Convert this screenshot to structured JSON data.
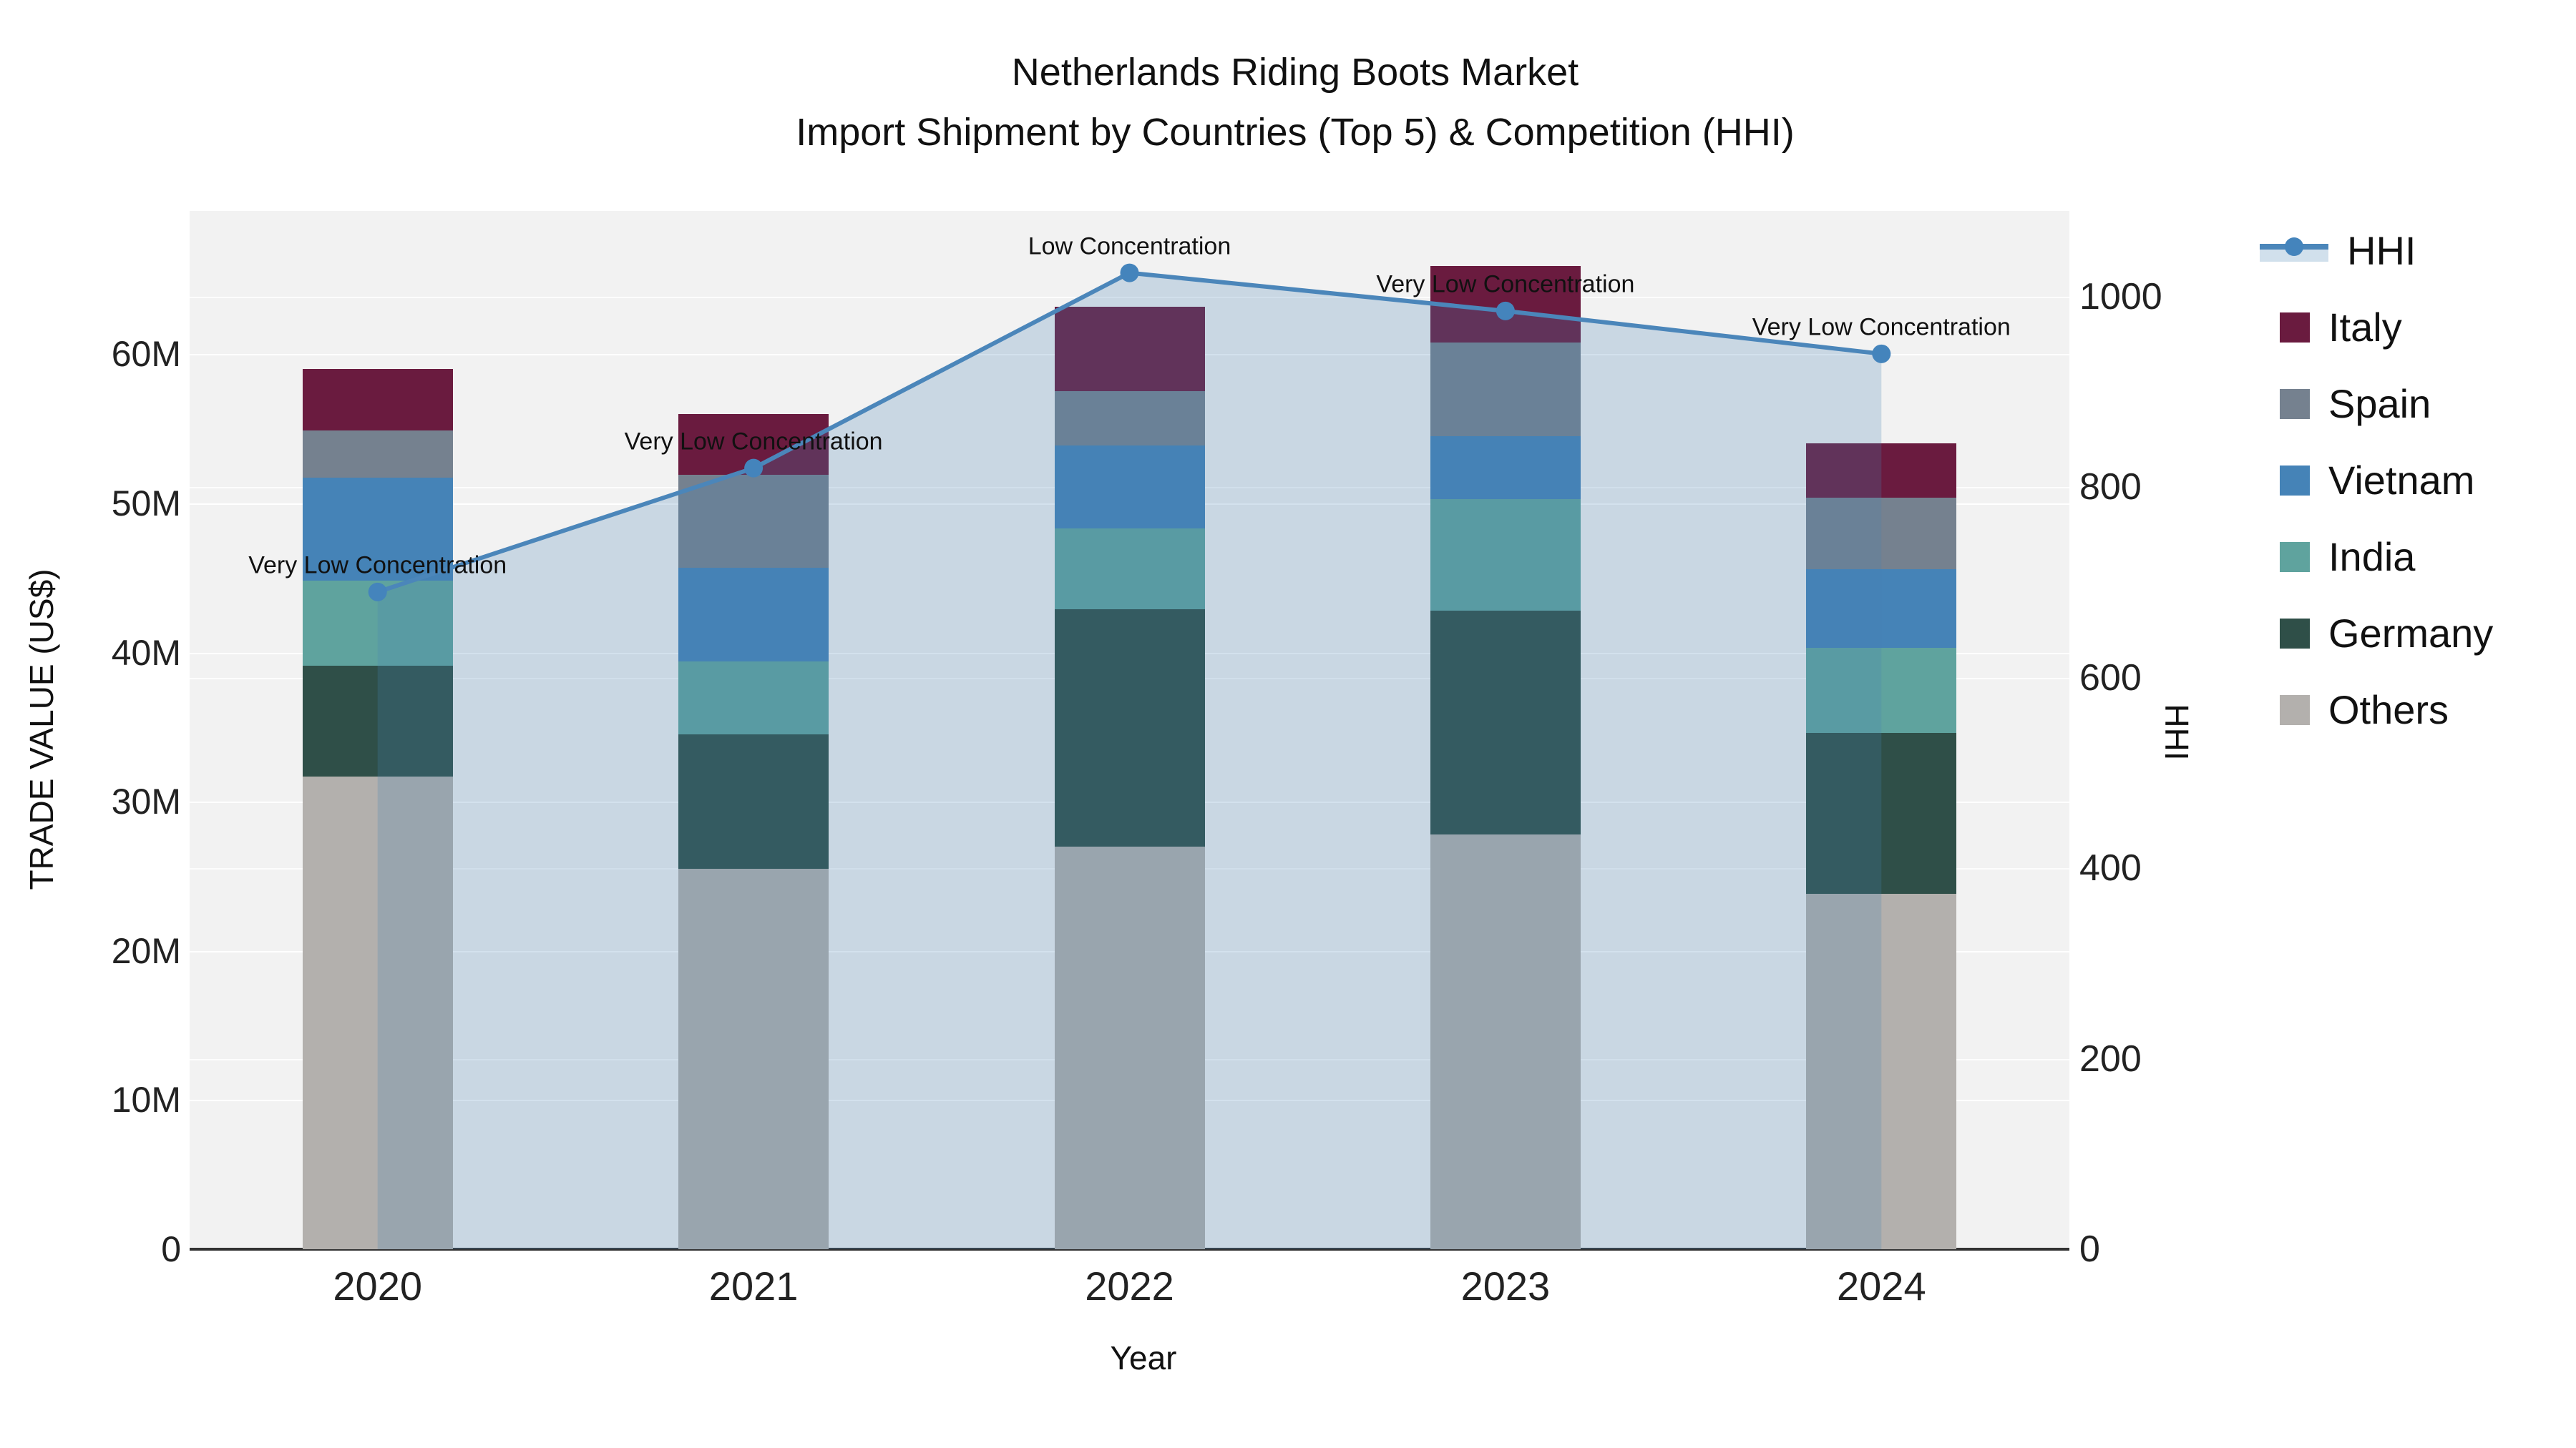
{
  "title": {
    "line1": "Netherlands Riding Boots Market",
    "line2": "Import Shipment by Countries (Top 5) & Competition (HHI)"
  },
  "axes": {
    "x": {
      "title": "Year",
      "ticks": [
        "2020",
        "2021",
        "2022",
        "2023",
        "2024"
      ]
    },
    "y_left": {
      "title": "TRADE VALUE (US$)",
      "ticks": [
        "0",
        "10M",
        "20M",
        "30M",
        "40M",
        "50M",
        "60M"
      ],
      "tick_values_m": [
        0,
        10,
        20,
        30,
        40,
        50,
        60
      ],
      "max_m": 69.6
    },
    "y_right": {
      "title": "HHI",
      "ticks": [
        "0",
        "200",
        "400",
        "600",
        "800",
        "1000"
      ],
      "tick_values": [
        0,
        200,
        400,
        600,
        800,
        1000
      ],
      "max": 1090
    }
  },
  "colors": {
    "plot_bg": "#f2f2f2",
    "grid": "#ffffff",
    "axis_line": "#333333",
    "hhi_line": "#4b86ba",
    "hhi_marker": "#4484bc",
    "area_fill": "rgba(70,130,180,0.24)",
    "italy": "#6a1b3f",
    "spain": "#75818f",
    "vietnam": "#4583b7",
    "india": "#5fa39e",
    "germany": "#2f4f48",
    "others": "#b3b0ad"
  },
  "legend": {
    "items": [
      {
        "label": "HHI",
        "kind": "line"
      },
      {
        "label": "Italy",
        "kind": "square",
        "color": "#6a1b3f"
      },
      {
        "label": "Spain",
        "kind": "square",
        "color": "#75818f"
      },
      {
        "label": "Vietnam",
        "kind": "square",
        "color": "#4583b7"
      },
      {
        "label": "India",
        "kind": "square",
        "color": "#5fa39e"
      },
      {
        "label": "Germany",
        "kind": "square",
        "color": "#2f4f48"
      },
      {
        "label": "Others",
        "kind": "square",
        "color": "#b3b0ad"
      }
    ]
  },
  "chart_data": {
    "type": "stacked-bar+line",
    "title": "Netherlands Riding Boots Market — Import Shipment by Countries (Top 5) & Competition (HHI)",
    "xlabel": "Year",
    "ylabel": "TRADE VALUE (US$)",
    "y2label": "HHI",
    "categories": [
      "2020",
      "2021",
      "2022",
      "2023",
      "2024"
    ],
    "value_unit": "million US$",
    "series": [
      {
        "name": "Italy",
        "color": "#6a1b3f",
        "values": [
          4.1,
          4.1,
          5.7,
          5.1,
          3.6
        ]
      },
      {
        "name": "Spain",
        "color": "#75818f",
        "values": [
          3.2,
          6.2,
          3.6,
          6.3,
          4.8
        ]
      },
      {
        "name": "Vietnam",
        "color": "#4583b7",
        "values": [
          6.9,
          6.3,
          5.6,
          4.2,
          5.3
        ]
      },
      {
        "name": "India",
        "color": "#5fa39e",
        "values": [
          5.7,
          4.9,
          5.4,
          7.5,
          5.7
        ]
      },
      {
        "name": "Germany",
        "color": "#2f4f48",
        "values": [
          7.4,
          9.0,
          15.9,
          15.0,
          10.8
        ]
      },
      {
        "name": "Others",
        "color": "#b3b0ad",
        "values": [
          31.7,
          25.5,
          27.0,
          27.8,
          23.8
        ]
      }
    ],
    "stack_totals_m": [
      59.0,
      56.0,
      63.2,
      65.9,
      54.0
    ],
    "line_series": {
      "name": "HHI",
      "axis": "right",
      "values": [
        690,
        820,
        1025,
        985,
        940
      ]
    },
    "annotations": [
      {
        "x": "2020",
        "text": "Very Low Concentration"
      },
      {
        "x": "2021",
        "text": "Very Low Concentration"
      },
      {
        "x": "2022",
        "text": "Low Concentration"
      },
      {
        "x": "2023",
        "text": "Very Low Concentration"
      },
      {
        "x": "2024",
        "text": "Very Low Concentration"
      }
    ],
    "ylim_m": [
      0,
      69.6
    ],
    "y2lim": [
      0,
      1090
    ],
    "grid": "both-y-axes, white lines on gray background",
    "legend_position": "right"
  }
}
